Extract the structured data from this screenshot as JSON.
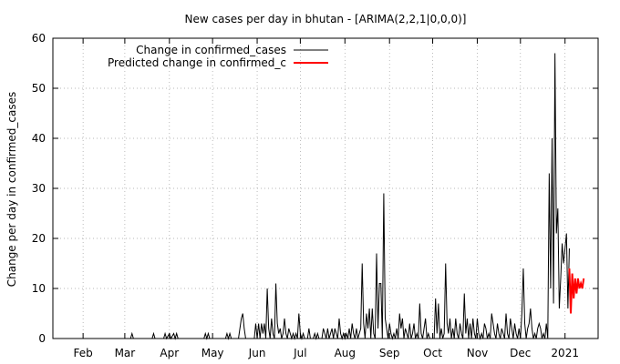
{
  "chart_data": {
    "type": "line",
    "title": "New cases per day in bhutan -  [ARIMA(2,2,1|0,0,0)]",
    "xlabel": "",
    "ylabel": "Change per day in confirmed_cases",
    "ylim": [
      0,
      60
    ],
    "yticks": [
      0,
      10,
      20,
      30,
      40,
      50,
      60
    ],
    "xlim": [
      "2020-01-11",
      "2021-01-24"
    ],
    "xticks": [
      {
        "date": "2020-02-01",
        "label": "Feb"
      },
      {
        "date": "2020-03-01",
        "label": "Mar"
      },
      {
        "date": "2020-04-01",
        "label": "Apr"
      },
      {
        "date": "2020-05-01",
        "label": "May"
      },
      {
        "date": "2020-06-01",
        "label": "Jun"
      },
      {
        "date": "2020-07-01",
        "label": "Jul"
      },
      {
        "date": "2020-08-01",
        "label": "Aug"
      },
      {
        "date": "2020-09-01",
        "label": "Sep"
      },
      {
        "date": "2020-10-01",
        "label": "Oct"
      },
      {
        "date": "2020-11-01",
        "label": "Nov"
      },
      {
        "date": "2020-12-01",
        "label": "Dec"
      },
      {
        "date": "2021-01-01",
        "label": "2021"
      }
    ],
    "grid": true,
    "legend_position": "top-left",
    "series": [
      {
        "name": "Change in confirmed_cases",
        "color": "#000000",
        "points": [
          [
            "2020-01-11",
            0
          ],
          [
            "2020-03-05",
            0
          ],
          [
            "2020-03-06",
            1
          ],
          [
            "2020-03-07",
            0
          ],
          [
            "2020-03-20",
            0
          ],
          [
            "2020-03-21",
            1
          ],
          [
            "2020-03-22",
            0
          ],
          [
            "2020-03-28",
            0
          ],
          [
            "2020-03-29",
            1
          ],
          [
            "2020-03-30",
            0
          ],
          [
            "2020-04-01",
            1
          ],
          [
            "2020-04-02",
            0
          ],
          [
            "2020-04-04",
            1
          ],
          [
            "2020-04-05",
            0
          ],
          [
            "2020-04-06",
            1
          ],
          [
            "2020-04-07",
            0
          ],
          [
            "2020-04-25",
            0
          ],
          [
            "2020-04-26",
            1
          ],
          [
            "2020-04-27",
            0
          ],
          [
            "2020-04-28",
            1
          ],
          [
            "2020-04-29",
            0
          ],
          [
            "2020-05-10",
            0
          ],
          [
            "2020-05-11",
            1
          ],
          [
            "2020-05-12",
            0
          ],
          [
            "2020-05-13",
            1
          ],
          [
            "2020-05-14",
            0
          ],
          [
            "2020-05-19",
            0
          ],
          [
            "2020-05-20",
            2
          ],
          [
            "2020-05-21",
            4
          ],
          [
            "2020-05-22",
            5
          ],
          [
            "2020-05-23",
            2
          ],
          [
            "2020-05-24",
            0
          ],
          [
            "2020-05-30",
            0
          ],
          [
            "2020-05-31",
            3
          ],
          [
            "2020-06-01",
            0
          ],
          [
            "2020-06-02",
            3
          ],
          [
            "2020-06-03",
            0
          ],
          [
            "2020-06-04",
            3
          ],
          [
            "2020-06-05",
            1
          ],
          [
            "2020-06-06",
            3
          ],
          [
            "2020-06-07",
            0
          ],
          [
            "2020-06-08",
            10
          ],
          [
            "2020-06-09",
            2
          ],
          [
            "2020-06-10",
            0
          ],
          [
            "2020-06-11",
            4
          ],
          [
            "2020-06-12",
            1
          ],
          [
            "2020-06-13",
            0
          ],
          [
            "2020-06-14",
            11
          ],
          [
            "2020-06-15",
            3
          ],
          [
            "2020-06-16",
            1
          ],
          [
            "2020-06-17",
            2
          ],
          [
            "2020-06-18",
            0
          ],
          [
            "2020-06-19",
            1
          ],
          [
            "2020-06-20",
            4
          ],
          [
            "2020-06-21",
            1
          ],
          [
            "2020-06-22",
            0
          ],
          [
            "2020-06-23",
            2
          ],
          [
            "2020-06-24",
            1
          ],
          [
            "2020-06-25",
            0
          ],
          [
            "2020-06-26",
            1
          ],
          [
            "2020-06-27",
            0
          ],
          [
            "2020-06-28",
            1
          ],
          [
            "2020-06-29",
            0
          ],
          [
            "2020-06-30",
            5
          ],
          [
            "2020-07-01",
            1
          ],
          [
            "2020-07-02",
            0
          ],
          [
            "2020-07-03",
            1
          ],
          [
            "2020-07-04",
            0
          ],
          [
            "2020-07-06",
            0
          ],
          [
            "2020-07-07",
            2
          ],
          [
            "2020-07-08",
            0
          ],
          [
            "2020-07-10",
            0
          ],
          [
            "2020-07-11",
            1
          ],
          [
            "2020-07-12",
            0
          ],
          [
            "2020-07-13",
            1
          ],
          [
            "2020-07-14",
            0
          ],
          [
            "2020-07-16",
            0
          ],
          [
            "2020-07-17",
            2
          ],
          [
            "2020-07-18",
            1
          ],
          [
            "2020-07-19",
            0
          ],
          [
            "2020-07-20",
            2
          ],
          [
            "2020-07-21",
            0
          ],
          [
            "2020-07-22",
            1
          ],
          [
            "2020-07-23",
            2
          ],
          [
            "2020-07-24",
            0
          ],
          [
            "2020-07-25",
            2
          ],
          [
            "2020-07-26",
            1
          ],
          [
            "2020-07-27",
            0
          ],
          [
            "2020-07-28",
            4
          ],
          [
            "2020-07-29",
            1
          ],
          [
            "2020-07-30",
            0
          ],
          [
            "2020-07-31",
            1
          ],
          [
            "2020-08-01",
            0
          ],
          [
            "2020-08-02",
            1
          ],
          [
            "2020-08-03",
            0
          ],
          [
            "2020-08-04",
            2
          ],
          [
            "2020-08-05",
            0
          ],
          [
            "2020-08-06",
            3
          ],
          [
            "2020-08-07",
            1
          ],
          [
            "2020-08-08",
            0
          ],
          [
            "2020-08-09",
            2
          ],
          [
            "2020-08-10",
            0
          ],
          [
            "2020-08-11",
            1
          ],
          [
            "2020-08-12",
            2
          ],
          [
            "2020-08-13",
            15
          ],
          [
            "2020-08-14",
            3
          ],
          [
            "2020-08-15",
            0
          ],
          [
            "2020-08-16",
            5
          ],
          [
            "2020-08-17",
            2
          ],
          [
            "2020-08-18",
            6
          ],
          [
            "2020-08-19",
            0
          ],
          [
            "2020-08-20",
            6
          ],
          [
            "2020-08-21",
            1
          ],
          [
            "2020-08-22",
            0
          ],
          [
            "2020-08-23",
            17
          ],
          [
            "2020-08-24",
            2
          ],
          [
            "2020-08-25",
            11
          ],
          [
            "2020-08-26",
            11
          ],
          [
            "2020-08-27",
            0
          ],
          [
            "2020-08-28",
            29
          ],
          [
            "2020-08-29",
            4
          ],
          [
            "2020-08-30",
            2
          ],
          [
            "2020-08-31",
            0
          ],
          [
            "2020-09-01",
            3
          ],
          [
            "2020-09-02",
            1
          ],
          [
            "2020-09-03",
            0
          ],
          [
            "2020-09-04",
            1
          ],
          [
            "2020-09-05",
            0
          ],
          [
            "2020-09-06",
            2
          ],
          [
            "2020-09-07",
            0
          ],
          [
            "2020-09-08",
            5
          ],
          [
            "2020-09-09",
            2
          ],
          [
            "2020-09-10",
            4
          ],
          [
            "2020-09-11",
            0
          ],
          [
            "2020-09-12",
            2
          ],
          [
            "2020-09-13",
            1
          ],
          [
            "2020-09-14",
            0
          ],
          [
            "2020-09-15",
            3
          ],
          [
            "2020-09-16",
            0
          ],
          [
            "2020-09-17",
            1
          ],
          [
            "2020-09-18",
            3
          ],
          [
            "2020-09-19",
            0
          ],
          [
            "2020-09-20",
            1
          ],
          [
            "2020-09-21",
            0
          ],
          [
            "2020-09-22",
            7
          ],
          [
            "2020-09-23",
            1
          ],
          [
            "2020-09-24",
            0
          ],
          [
            "2020-09-25",
            2
          ],
          [
            "2020-09-26",
            4
          ],
          [
            "2020-09-27",
            0
          ],
          [
            "2020-09-28",
            1
          ],
          [
            "2020-09-29",
            0
          ],
          [
            "2020-10-02",
            0
          ],
          [
            "2020-10-03",
            8
          ],
          [
            "2020-10-04",
            1
          ],
          [
            "2020-10-05",
            7
          ],
          [
            "2020-10-06",
            0
          ],
          [
            "2020-10-07",
            2
          ],
          [
            "2020-10-08",
            0
          ],
          [
            "2020-10-09",
            1
          ],
          [
            "2020-10-10",
            15
          ],
          [
            "2020-10-11",
            3
          ],
          [
            "2020-10-12",
            1
          ],
          [
            "2020-10-13",
            4
          ],
          [
            "2020-10-14",
            0
          ],
          [
            "2020-10-15",
            2
          ],
          [
            "2020-10-16",
            0
          ],
          [
            "2020-10-17",
            4
          ],
          [
            "2020-10-18",
            1
          ],
          [
            "2020-10-19",
            0
          ],
          [
            "2020-10-20",
            3
          ],
          [
            "2020-10-21",
            1
          ],
          [
            "2020-10-22",
            0
          ],
          [
            "2020-10-23",
            9
          ],
          [
            "2020-10-24",
            1
          ],
          [
            "2020-10-25",
            4
          ],
          [
            "2020-10-26",
            0
          ],
          [
            "2020-10-27",
            3
          ],
          [
            "2020-10-28",
            0
          ],
          [
            "2020-10-29",
            4
          ],
          [
            "2020-10-30",
            1
          ],
          [
            "2020-10-31",
            0
          ],
          [
            "2020-11-01",
            4
          ],
          [
            "2020-11-02",
            1
          ],
          [
            "2020-11-03",
            0
          ],
          [
            "2020-11-04",
            1
          ],
          [
            "2020-11-05",
            0
          ],
          [
            "2020-11-06",
            3
          ],
          [
            "2020-11-07",
            2
          ],
          [
            "2020-11-08",
            0
          ],
          [
            "2020-11-09",
            1
          ],
          [
            "2020-11-10",
            0
          ],
          [
            "2020-11-11",
            5
          ],
          [
            "2020-11-12",
            3
          ],
          [
            "2020-11-13",
            1
          ],
          [
            "2020-11-14",
            0
          ],
          [
            "2020-11-15",
            3
          ],
          [
            "2020-11-16",
            1
          ],
          [
            "2020-11-17",
            0
          ],
          [
            "2020-11-18",
            2
          ],
          [
            "2020-11-19",
            1
          ],
          [
            "2020-11-20",
            0
          ],
          [
            "2020-11-21",
            5
          ],
          [
            "2020-11-22",
            1
          ],
          [
            "2020-11-23",
            0
          ],
          [
            "2020-11-24",
            4
          ],
          [
            "2020-11-25",
            2
          ],
          [
            "2020-11-26",
            0
          ],
          [
            "2020-11-27",
            3
          ],
          [
            "2020-11-28",
            1
          ],
          [
            "2020-11-29",
            0
          ],
          [
            "2020-11-30",
            2
          ],
          [
            "2020-12-01",
            0
          ],
          [
            "2020-12-02",
            5
          ],
          [
            "2020-12-03",
            14
          ],
          [
            "2020-12-04",
            3
          ],
          [
            "2020-12-05",
            0
          ],
          [
            "2020-12-06",
            2
          ],
          [
            "2020-12-07",
            3
          ],
          [
            "2020-12-08",
            6
          ],
          [
            "2020-12-09",
            2
          ],
          [
            "2020-12-10",
            0
          ],
          [
            "2020-12-11",
            1
          ],
          [
            "2020-12-12",
            0
          ],
          [
            "2020-12-13",
            2
          ],
          [
            "2020-12-14",
            3
          ],
          [
            "2020-12-15",
            2
          ],
          [
            "2020-12-16",
            0
          ],
          [
            "2020-12-17",
            1
          ],
          [
            "2020-12-18",
            0
          ],
          [
            "2020-12-19",
            3
          ],
          [
            "2020-12-20",
            0
          ],
          [
            "2020-12-21",
            33
          ],
          [
            "2020-12-22",
            10
          ],
          [
            "2020-12-23",
            40
          ],
          [
            "2020-12-24",
            7
          ],
          [
            "2020-12-25",
            57
          ],
          [
            "2020-12-26",
            21
          ],
          [
            "2020-12-27",
            26
          ],
          [
            "2020-12-28",
            6
          ],
          [
            "2020-12-29",
            12
          ],
          [
            "2020-12-30",
            19
          ],
          [
            "2020-12-31",
            15
          ],
          [
            "2021-01-01",
            18
          ],
          [
            "2021-01-02",
            21
          ],
          [
            "2021-01-03",
            6
          ],
          [
            "2021-01-04",
            18
          ]
        ]
      },
      {
        "name": "Predicted change in confirmed_c",
        "color": "#ff0000",
        "points": [
          [
            "2021-01-04",
            14
          ],
          [
            "2021-01-05",
            5
          ],
          [
            "2021-01-06",
            13
          ],
          [
            "2021-01-07",
            8
          ],
          [
            "2021-01-08",
            12
          ],
          [
            "2021-01-09",
            9
          ],
          [
            "2021-01-10",
            12
          ],
          [
            "2021-01-11",
            10
          ],
          [
            "2021-01-12",
            11
          ],
          [
            "2021-01-13",
            10
          ],
          [
            "2021-01-14",
            12
          ]
        ]
      }
    ]
  }
}
